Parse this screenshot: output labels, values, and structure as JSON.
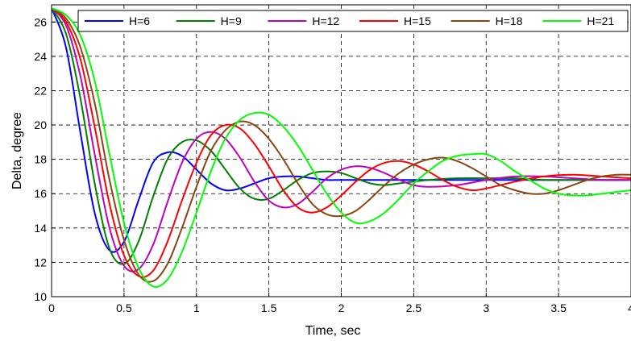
{
  "chart_data": {
    "type": "line",
    "xlabel": "Time,  sec",
    "ylabel": "Delta, degree",
    "xlim": [
      0,
      4
    ],
    "ylim": [
      10,
      27
    ],
    "xticks": [
      0,
      0.5,
      1,
      1.5,
      2,
      2.5,
      3,
      3.5,
      4
    ],
    "xtick_labels": [
      "0",
      "0.5",
      "1",
      "1.5",
      "2",
      "2.5",
      "3",
      "3.5",
      "4"
    ],
    "yticks": [
      10,
      12,
      14,
      16,
      18,
      20,
      22,
      24,
      26
    ],
    "ytick_labels": [
      "10",
      "12",
      "14",
      "16",
      "18",
      "20",
      "22",
      "24",
      "26"
    ],
    "grid": true,
    "legend_position": "top",
    "series": [
      {
        "name": "H=6",
        "color": "#0000ff",
        "x": [
          0,
          0.1,
          0.2,
          0.3,
          0.4,
          0.5,
          0.6,
          0.7,
          0.8,
          0.9,
          1.0,
          1.1,
          1.2,
          1.3,
          1.4,
          1.5,
          1.6,
          1.7,
          1.8,
          1.9,
          2.0,
          2.1,
          2.2,
          2.4,
          2.6,
          2.8,
          3.0,
          3.2,
          3.4,
          3.6,
          3.8,
          4.0
        ],
        "y": [
          26.8,
          24.5,
          19.5,
          14.8,
          12.7,
          13.2,
          15.6,
          17.8,
          18.4,
          18.2,
          17.4,
          16.6,
          16.2,
          16.3,
          16.6,
          16.9,
          17.0,
          17.0,
          16.9,
          16.8,
          16.8,
          16.8,
          16.8,
          16.8,
          16.8,
          16.8,
          16.8,
          16.8,
          16.8,
          16.8,
          16.8,
          16.8
        ]
      },
      {
        "name": "H=9",
        "color": "#008000",
        "x": [
          0,
          0.1,
          0.2,
          0.3,
          0.4,
          0.5,
          0.6,
          0.7,
          0.8,
          0.9,
          1.0,
          1.1,
          1.2,
          1.3,
          1.4,
          1.5,
          1.6,
          1.7,
          1.8,
          1.9,
          2.0,
          2.1,
          2.2,
          2.3,
          2.4,
          2.6,
          2.8,
          3.0,
          3.2,
          3.4,
          3.6,
          3.8,
          4.0
        ],
        "y": [
          26.8,
          25.3,
          21.5,
          16.5,
          12.8,
          11.9,
          13.2,
          15.8,
          18.0,
          19.0,
          19.1,
          18.5,
          17.4,
          16.3,
          15.7,
          15.7,
          16.2,
          16.8,
          17.2,
          17.3,
          17.2,
          16.9,
          16.6,
          16.5,
          16.6,
          16.8,
          16.9,
          16.9,
          16.9,
          16.8,
          16.8,
          16.8,
          16.8
        ]
      },
      {
        "name": "H=12",
        "color": "#bf00bf",
        "x": [
          0,
          0.1,
          0.2,
          0.3,
          0.4,
          0.5,
          0.6,
          0.7,
          0.8,
          0.9,
          1.0,
          1.1,
          1.2,
          1.3,
          1.4,
          1.5,
          1.6,
          1.7,
          1.8,
          1.9,
          2.0,
          2.1,
          2.2,
          2.3,
          2.4,
          2.5,
          2.6,
          2.8,
          3.0,
          3.2,
          3.4,
          3.6,
          3.8,
          4.0
        ],
        "y": [
          26.8,
          25.8,
          22.8,
          18.2,
          14.0,
          11.8,
          11.6,
          13.0,
          15.5,
          17.8,
          19.2,
          19.6,
          19.2,
          18.1,
          16.7,
          15.6,
          15.2,
          15.4,
          16.1,
          16.9,
          17.4,
          17.6,
          17.5,
          17.2,
          16.8,
          16.5,
          16.4,
          16.5,
          16.8,
          17.0,
          17.0,
          16.9,
          16.8,
          16.8
        ]
      },
      {
        "name": "H=15",
        "color": "#ff0000",
        "x": [
          0,
          0.1,
          0.2,
          0.3,
          0.4,
          0.5,
          0.6,
          0.7,
          0.8,
          0.9,
          1.0,
          1.1,
          1.2,
          1.3,
          1.4,
          1.5,
          1.6,
          1.7,
          1.8,
          1.9,
          2.0,
          2.1,
          2.2,
          2.3,
          2.4,
          2.5,
          2.6,
          2.7,
          2.8,
          2.9,
          3.0,
          3.2,
          3.4,
          3.6,
          3.8,
          4.0
        ],
        "y": [
          26.8,
          26.0,
          23.8,
          19.8,
          15.4,
          12.4,
          11.2,
          11.5,
          13.2,
          15.6,
          17.8,
          19.4,
          20.0,
          19.8,
          18.9,
          17.6,
          16.2,
          15.2,
          14.9,
          15.2,
          15.9,
          16.7,
          17.4,
          17.8,
          17.9,
          17.7,
          17.3,
          16.8,
          16.4,
          16.2,
          16.3,
          16.7,
          17.0,
          17.1,
          17.0,
          16.9
        ]
      },
      {
        "name": "H=18",
        "color": "#8b4513",
        "x": [
          0,
          0.1,
          0.2,
          0.3,
          0.4,
          0.5,
          0.6,
          0.7,
          0.8,
          0.9,
          1.0,
          1.1,
          1.2,
          1.3,
          1.4,
          1.5,
          1.6,
          1.7,
          1.8,
          1.9,
          2.0,
          2.1,
          2.2,
          2.3,
          2.4,
          2.5,
          2.6,
          2.7,
          2.8,
          2.9,
          3.0,
          3.1,
          3.2,
          3.3,
          3.4,
          3.5,
          3.6,
          3.7,
          3.8,
          3.9,
          4.0
        ],
        "y": [
          26.8,
          26.2,
          24.5,
          21.2,
          16.8,
          13.3,
          11.3,
          10.9,
          11.9,
          14.0,
          16.4,
          18.5,
          19.7,
          20.2,
          20.0,
          19.2,
          18.0,
          16.6,
          15.4,
          14.8,
          14.7,
          15.0,
          15.7,
          16.5,
          17.2,
          17.7,
          18.0,
          18.1,
          17.9,
          17.5,
          17.0,
          16.5,
          16.2,
          16.0,
          16.0,
          16.2,
          16.5,
          16.8,
          17.0,
          17.1,
          17.1
        ]
      },
      {
        "name": "H=21",
        "color": "#00ff00",
        "x": [
          0,
          0.1,
          0.2,
          0.3,
          0.4,
          0.5,
          0.6,
          0.7,
          0.8,
          0.9,
          1.0,
          1.1,
          1.2,
          1.3,
          1.4,
          1.5,
          1.6,
          1.7,
          1.8,
          1.9,
          2.0,
          2.1,
          2.2,
          2.3,
          2.4,
          2.5,
          2.6,
          2.7,
          2.8,
          2.9,
          3.0,
          3.1,
          3.2,
          3.3,
          3.4,
          3.5,
          3.6,
          3.7,
          3.8,
          3.9,
          4.0
        ],
        "y": [
          26.8,
          26.4,
          25.2,
          22.5,
          18.3,
          14.3,
          11.7,
          10.6,
          11.0,
          12.6,
          14.9,
          17.3,
          19.2,
          20.3,
          20.7,
          20.6,
          19.9,
          18.8,
          17.4,
          16.0,
          14.9,
          14.3,
          14.4,
          14.9,
          15.7,
          16.6,
          17.3,
          17.9,
          18.2,
          18.3,
          18.3,
          17.9,
          17.3,
          16.8,
          16.3,
          16.0,
          15.9,
          15.9,
          16.0,
          16.1,
          16.2
        ]
      }
    ]
  }
}
